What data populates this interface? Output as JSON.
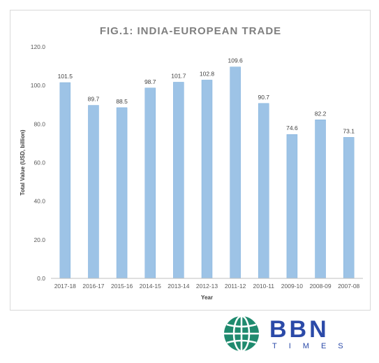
{
  "chart_data": {
    "type": "bar",
    "title": "FIG.1: INDIA-EUROPEAN TRADE",
    "xlabel": "Year",
    "ylabel": "Total Value (USD, billion)",
    "categories": [
      "2017-18",
      "2016-17",
      "2015-16",
      "2014-15",
      "2013-14",
      "2012-13",
      "2011-12",
      "2010-11",
      "2009-10",
      "2008-09",
      "2007-08"
    ],
    "values": [
      101.5,
      89.7,
      88.5,
      98.7,
      101.7,
      102.8,
      109.6,
      90.7,
      74.6,
      82.2,
      73.1
    ],
    "data_labels": [
      "101.5",
      "89.7",
      "88.5",
      "98.7",
      "101.7",
      "102.8",
      "109.6",
      "90.7",
      "74.6",
      "82.2",
      "73.1"
    ],
    "ylim": [
      0,
      120
    ],
    "yticks": [
      "0.0",
      "20.0",
      "40.0",
      "60.0",
      "80.0",
      "100.0",
      "120.0"
    ],
    "grid": false,
    "legend": "none",
    "bar_color": "#9dc3e6",
    "bar_edge_color": "#7fb0dc"
  },
  "logo": {
    "brand": "BBN",
    "subtitle": "TIMES",
    "globe_color": "#1f8a6e",
    "text_color": "#2b4aa8"
  }
}
